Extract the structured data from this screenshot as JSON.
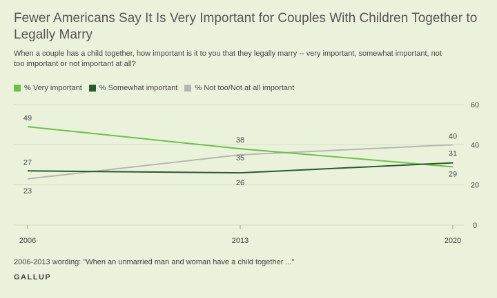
{
  "header": {
    "title": "Fewer Americans Say It Is Very Important for Couples With Children Together to Legally Marry",
    "subtitle": "When a couple has a child together, how important is it to you that they legally marry -- very important, somewhat important, not too important or not important at all?"
  },
  "footer": {
    "note": "2006-2013 wording: \"When an unmarried man and woman have a child together ...\"",
    "brand": "GALLUP"
  },
  "colors": {
    "very": "#6cc04a",
    "somewhat": "#2a5a2e",
    "not": "#b4b8b0",
    "grid": "#d4dcc4",
    "background": "#ebf2dc"
  },
  "chart_data": {
    "type": "line",
    "title": "Fewer Americans Say It Is Very Important for Couples With Children Together to Legally Marry",
    "x": [
      "2006",
      "2013",
      "2020"
    ],
    "ylim": [
      0,
      60
    ],
    "yticks": [
      0,
      20,
      40,
      60
    ],
    "grid": true,
    "legend_position": "top-left",
    "series": [
      {
        "key": "very",
        "name": "% Very important",
        "values": [
          49,
          38,
          29
        ]
      },
      {
        "key": "somewhat",
        "name": "% Somewhat important",
        "values": [
          27,
          26,
          31
        ]
      },
      {
        "key": "not",
        "name": "% Not too/Not at all important",
        "values": [
          23,
          35,
          40
        ]
      }
    ]
  }
}
